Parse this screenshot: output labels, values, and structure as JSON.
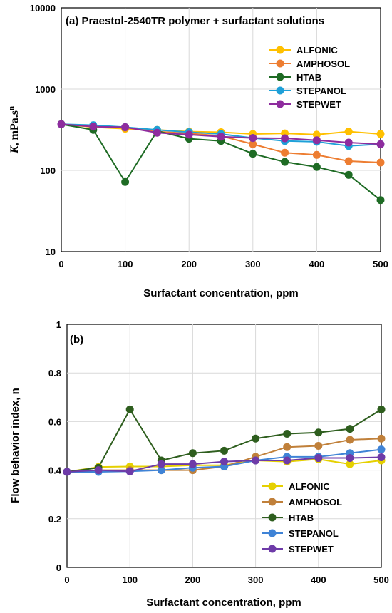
{
  "colors": {
    "ALFONIC_a": "#FFC000",
    "AMPHOSOL_a": "#ED7D31",
    "HTAB_a": "#1E6B24",
    "STEPANOL_a": "#1EA0D8",
    "STEPWET_a": "#8E2C9E",
    "ALFONIC_b": "#E5D000",
    "AMPHOSOL_b": "#C0803A",
    "HTAB_b": "#2E5E1E",
    "STEPANOL_b": "#3F83D6",
    "STEPWET_b": "#6E3BA8"
  },
  "chart_data": [
    {
      "type": "line",
      "title": "(a) Praestol-2540TR polymer + surfactant solutions",
      "xlabel": "Surfactant concentration, ppm",
      "ylabel_main": "K",
      "ylabel_rest": ", mPa.s",
      "ylabel_sup": "n",
      "yscale": "log",
      "xlim": [
        0,
        500
      ],
      "ylim": [
        10,
        10000
      ],
      "x_ticks": [
        "0",
        "100",
        "200",
        "300",
        "400",
        "500"
      ],
      "y_ticks": [
        "10",
        "100",
        "1000",
        "10000"
      ],
      "grid": true,
      "legend_position": "upper-right",
      "x": [
        0,
        50,
        100,
        150,
        200,
        250,
        300,
        350,
        400,
        450,
        500
      ],
      "series": [
        {
          "name": "ALFONIC",
          "values": [
            370,
            340,
            325,
            315,
            300,
            295,
            280,
            285,
            275,
            300,
            280
          ]
        },
        {
          "name": "AMPHOSOL",
          "values": [
            370,
            345,
            335,
            300,
            285,
            265,
            210,
            165,
            155,
            130,
            125
          ]
        },
        {
          "name": "HTAB",
          "values": [
            370,
            315,
            72,
            305,
            245,
            230,
            160,
            127,
            110,
            88,
            43
          ]
        },
        {
          "name": "STEPANOL",
          "values": [
            370,
            360,
            340,
            315,
            295,
            280,
            250,
            230,
            225,
            200,
            210
          ]
        },
        {
          "name": "STEPWET",
          "values": [
            370,
            345,
            340,
            290,
            275,
            260,
            250,
            248,
            235,
            220,
            210
          ]
        }
      ]
    },
    {
      "type": "line",
      "title": "(b)",
      "xlabel": "Surfactant concentration, ppm",
      "ylabel": "Flow behavior index, n",
      "xlim": [
        0,
        500
      ],
      "ylim": [
        0,
        1
      ],
      "x_ticks": [
        "0",
        "100",
        "200",
        "300",
        "400",
        "500"
      ],
      "y_ticks": [
        "0",
        "0.2",
        "0.4",
        "0.6",
        "0.8",
        "1"
      ],
      "grid": true,
      "legend_position": "lower-right",
      "x": [
        0,
        50,
        100,
        150,
        200,
        250,
        300,
        350,
        400,
        450,
        500
      ],
      "series": [
        {
          "name": "ALFONIC",
          "values": [
            0.393,
            0.413,
            0.415,
            0.415,
            0.42,
            0.42,
            0.44,
            0.435,
            0.445,
            0.425,
            0.44
          ]
        },
        {
          "name": "AMPHOSOL",
          "values": [
            0.393,
            0.4,
            0.4,
            0.4,
            0.4,
            0.415,
            0.455,
            0.495,
            0.5,
            0.525,
            0.53
          ]
        },
        {
          "name": "HTAB",
          "values": [
            0.393,
            0.41,
            0.65,
            0.44,
            0.47,
            0.48,
            0.53,
            0.55,
            0.555,
            0.57,
            0.65
          ]
        },
        {
          "name": "STEPANOL",
          "values": [
            0.393,
            0.393,
            0.395,
            0.4,
            0.41,
            0.415,
            0.44,
            0.455,
            0.455,
            0.47,
            0.485
          ]
        },
        {
          "name": "STEPWET",
          "values": [
            0.393,
            0.4,
            0.395,
            0.425,
            0.425,
            0.435,
            0.44,
            0.44,
            0.45,
            0.45,
            0.453
          ]
        }
      ]
    }
  ]
}
